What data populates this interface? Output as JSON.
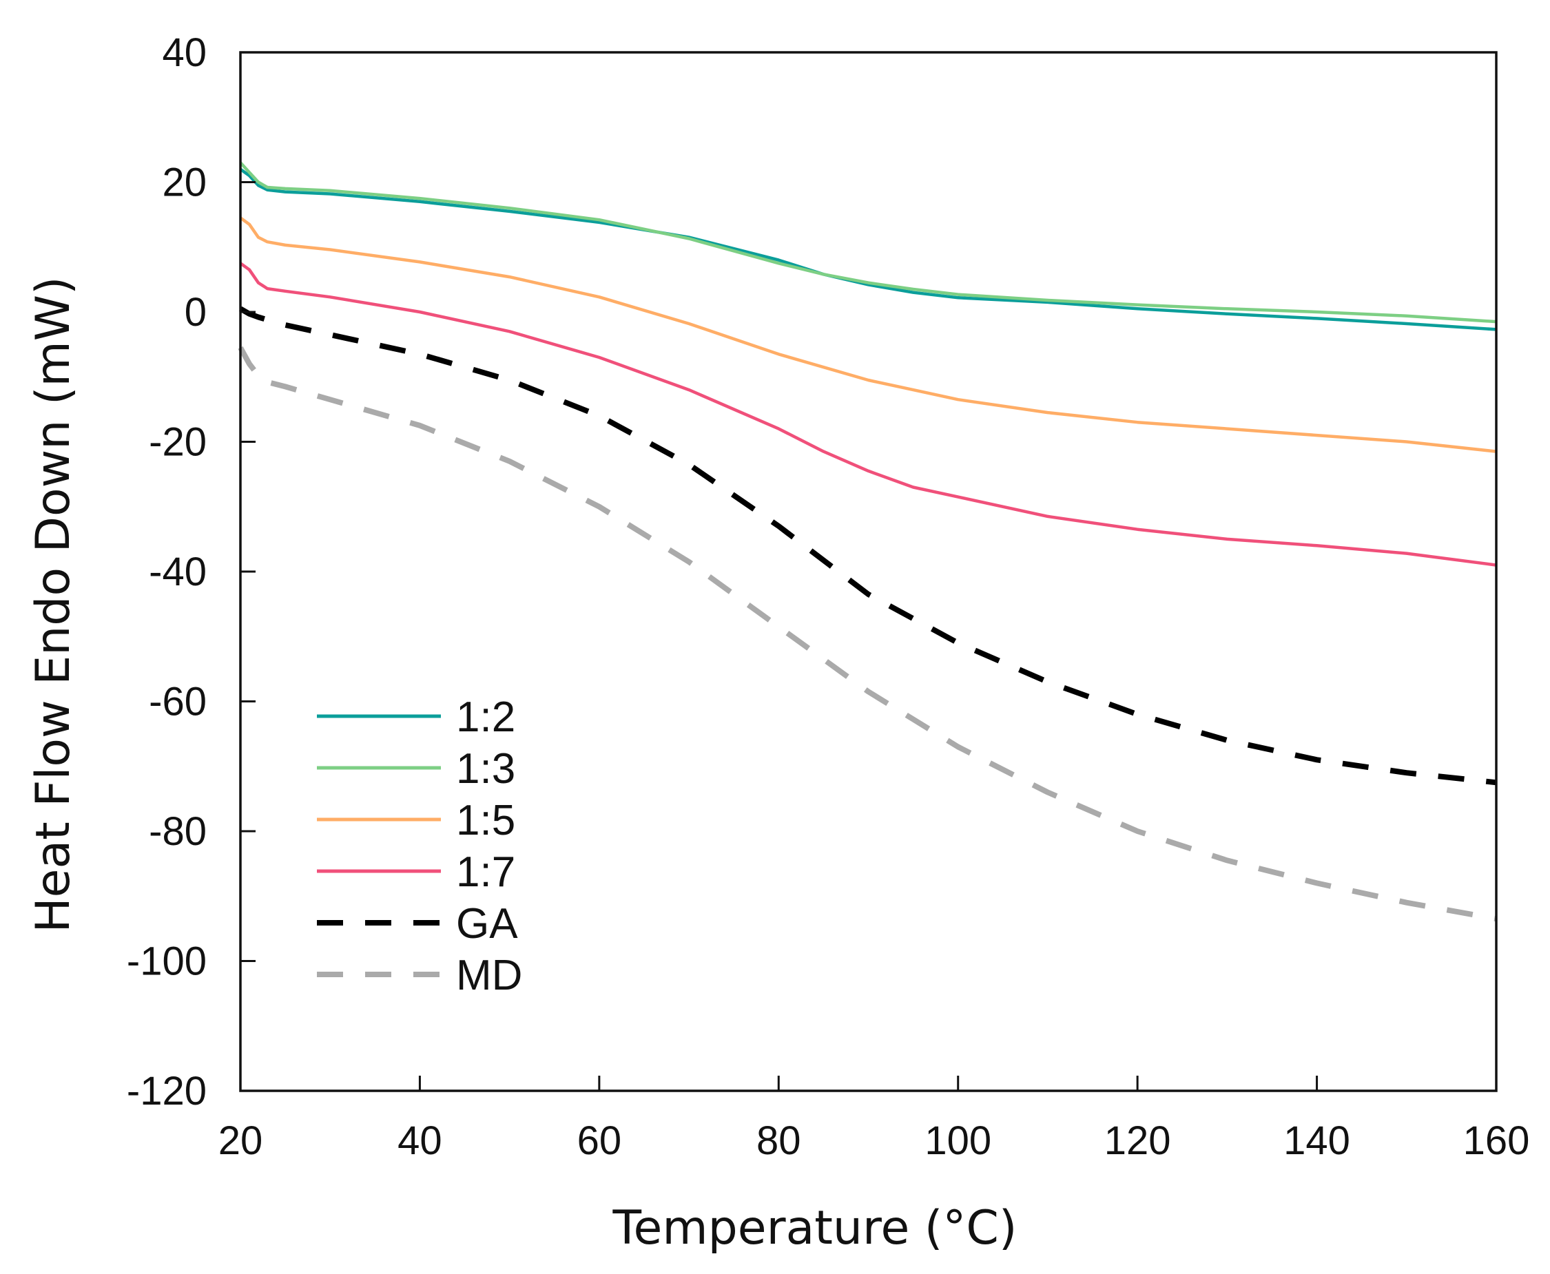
{
  "chart_data": {
    "type": "line",
    "title": "",
    "xlabel": "Temperature (°C)",
    "ylabel": "Heat Flow Endo Down (mW)",
    "xlim": [
      20,
      160
    ],
    "ylim": [
      -120,
      40
    ],
    "xticks": [
      20,
      40,
      60,
      80,
      100,
      120,
      140,
      160
    ],
    "yticks": [
      40,
      20,
      0,
      -20,
      -40,
      -60,
      -80,
      -100,
      -120
    ],
    "x_tick_labels": [
      "20",
      "40",
      "60",
      "80",
      "100",
      "120",
      "140",
      "160"
    ],
    "y_tick_labels": [
      "40",
      "20",
      "0",
      "-20",
      "-40",
      "-60",
      "-80",
      "-100",
      "-120"
    ],
    "grid": false,
    "legend_position": "lower-left",
    "series": [
      {
        "name": "1:2",
        "color": "#0b9e9a",
        "dash": "solid",
        "x": [
          20,
          21,
          22,
          23,
          25,
          30,
          40,
          50,
          60,
          70,
          80,
          85,
          90,
          95,
          100,
          110,
          120,
          130,
          140,
          150,
          160
        ],
        "y": [
          22,
          21,
          19.5,
          18.8,
          18.5,
          18.2,
          17,
          15.5,
          13.8,
          11.5,
          8,
          5.8,
          4.2,
          3,
          2.2,
          1.5,
          0.5,
          -0.3,
          -1,
          -1.8,
          -2.7
        ]
      },
      {
        "name": "1:3",
        "color": "#7dcf84",
        "dash": "solid",
        "x": [
          20,
          21,
          22,
          23,
          25,
          30,
          40,
          50,
          60,
          70,
          80,
          85,
          90,
          95,
          100,
          110,
          120,
          130,
          140,
          150,
          160
        ],
        "y": [
          23,
          21.5,
          20,
          19.2,
          19,
          18.7,
          17.5,
          16,
          14.2,
          11.3,
          7.5,
          5.8,
          4.5,
          3.5,
          2.7,
          1.8,
          1.1,
          0.5,
          0,
          -0.6,
          -1.5
        ]
      },
      {
        "name": "1:5",
        "color": "#ffad66",
        "dash": "solid",
        "x": [
          20,
          21,
          22,
          23,
          25,
          30,
          40,
          50,
          60,
          70,
          80,
          90,
          95,
          100,
          110,
          120,
          130,
          140,
          150,
          160
        ],
        "y": [
          14.5,
          13.5,
          11.5,
          10.8,
          10.3,
          9.6,
          7.7,
          5.4,
          2.3,
          -1.8,
          -6.5,
          -10.5,
          -12,
          -13.5,
          -15.5,
          -17,
          -18,
          -19,
          -20,
          -21.5
        ]
      },
      {
        "name": "1:7",
        "color": "#f0507a",
        "dash": "solid",
        "x": [
          20,
          21,
          22,
          23,
          25,
          30,
          40,
          50,
          60,
          70,
          80,
          85,
          90,
          95,
          100,
          110,
          120,
          130,
          140,
          150,
          160
        ],
        "y": [
          7.5,
          6.5,
          4.5,
          3.6,
          3.2,
          2.3,
          0,
          -3,
          -7,
          -12,
          -18,
          -21.5,
          -24.5,
          -27,
          -28.5,
          -31.5,
          -33.5,
          -35,
          -36,
          -37.2,
          -39
        ]
      },
      {
        "name": "GA",
        "color": "#000000",
        "dash": "long",
        "x": [
          20,
          21,
          22,
          25,
          30,
          40,
          50,
          60,
          70,
          80,
          90,
          100,
          110,
          120,
          130,
          140,
          150,
          160
        ],
        "y": [
          0.5,
          -0.3,
          -0.8,
          -2,
          -3.5,
          -6.5,
          -10.5,
          -16,
          -23.5,
          -33,
          -43.5,
          -51,
          -57,
          -62,
          -66,
          -69,
          -71,
          -72.5
        ]
      },
      {
        "name": "MD",
        "color": "#aaaaaa",
        "dash": "long",
        "x": [
          20,
          21,
          22,
          23,
          25,
          30,
          40,
          50,
          60,
          70,
          80,
          90,
          100,
          110,
          120,
          130,
          140,
          150,
          160
        ],
        "y": [
          -5.5,
          -8,
          -9.8,
          -10.8,
          -11.5,
          -13.5,
          -17.5,
          -23,
          -30,
          -38.5,
          -48.5,
          -58.5,
          -67,
          -74,
          -80,
          -84.5,
          -88,
          -91,
          -93.5
        ]
      }
    ]
  }
}
